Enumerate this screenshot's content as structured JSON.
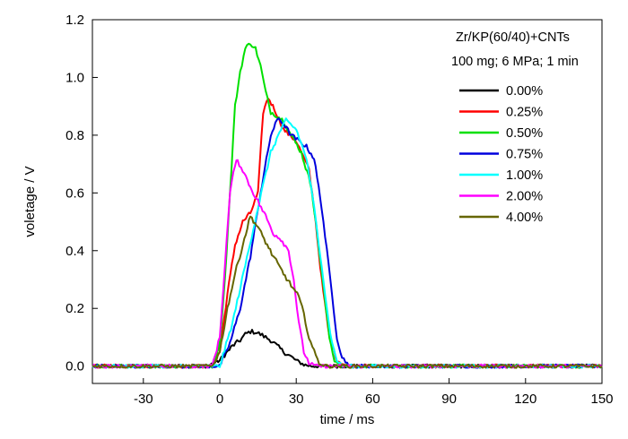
{
  "chart_data": {
    "type": "line",
    "xlabel": "time / ms",
    "ylabel": "voletage / V",
    "xlim": [
      -50,
      150
    ],
    "ylim": [
      -0.06,
      1.2
    ],
    "xticks": [
      -30,
      0,
      30,
      60,
      90,
      120,
      150
    ],
    "yticks": [
      0.0,
      0.2,
      0.4,
      0.6,
      0.8,
      1.0,
      1.2
    ],
    "ytick_labels": [
      "0.0",
      "0.2",
      "0.4",
      "0.6",
      "0.8",
      "1.0",
      "1.2"
    ],
    "grid": false,
    "legend_position": "top-right",
    "legend_header": [
      "Zr/KP(60/40)+CNTs",
      "100 mg; 6 MPa; 1 min"
    ],
    "series": [
      {
        "name": "0.00%",
        "color": "#000000",
        "x": [
          -50,
          -5,
          0,
          5,
          8,
          10,
          12,
          14,
          16,
          18,
          20,
          25,
          30,
          33,
          36,
          40,
          150
        ],
        "y": [
          0,
          0,
          0.02,
          0.07,
          0.09,
          0.11,
          0.12,
          0.118,
          0.11,
          0.1,
          0.09,
          0.05,
          0.02,
          0.005,
          0,
          0,
          0
        ]
      },
      {
        "name": "0.25%",
        "color": "#ff0000",
        "x": [
          -50,
          -3,
          0,
          3,
          6,
          9,
          12,
          15,
          17,
          19,
          22,
          25,
          30,
          35,
          37,
          40,
          43,
          46,
          50,
          150
        ],
        "y": [
          0,
          0,
          0.05,
          0.25,
          0.42,
          0.5,
          0.53,
          0.6,
          0.88,
          0.93,
          0.88,
          0.82,
          0.78,
          0.68,
          0.55,
          0.3,
          0.1,
          0.02,
          0,
          0
        ]
      },
      {
        "name": "0.50%",
        "color": "#00e000",
        "x": [
          -50,
          -3,
          0,
          2,
          4,
          6,
          8,
          10,
          12,
          14,
          16,
          18,
          20,
          22,
          25,
          28,
          32,
          36,
          39,
          41,
          43,
          45,
          48,
          150
        ],
        "y": [
          0,
          0,
          0.08,
          0.3,
          0.6,
          0.9,
          1.02,
          1.1,
          1.12,
          1.1,
          1.04,
          0.95,
          0.88,
          0.87,
          0.85,
          0.8,
          0.74,
          0.62,
          0.4,
          0.25,
          0.1,
          0.02,
          0,
          0
        ]
      },
      {
        "name": "0.75%",
        "color": "#0000dd",
        "x": [
          -50,
          0,
          4,
          8,
          12,
          16,
          20,
          23,
          25,
          28,
          31,
          34,
          37,
          40,
          42,
          44,
          46,
          48,
          50,
          52,
          150
        ],
        "y": [
          0,
          0,
          0.08,
          0.2,
          0.38,
          0.6,
          0.8,
          0.86,
          0.84,
          0.8,
          0.78,
          0.76,
          0.72,
          0.55,
          0.4,
          0.25,
          0.1,
          0.03,
          0.01,
          0,
          0
        ]
      },
      {
        "name": "1.00%",
        "color": "#00ffff",
        "x": [
          -50,
          0,
          5,
          10,
          15,
          20,
          24,
          26,
          30,
          34,
          37,
          40,
          42,
          44,
          46,
          48,
          150
        ],
        "y": [
          0,
          0,
          0.15,
          0.35,
          0.55,
          0.74,
          0.82,
          0.85,
          0.82,
          0.72,
          0.55,
          0.35,
          0.2,
          0.08,
          0.02,
          0,
          0
        ]
      },
      {
        "name": "2.00%",
        "color": "#ff00ff",
        "x": [
          -50,
          -3,
          0,
          2,
          4,
          6,
          7,
          9,
          12,
          15,
          18,
          21,
          24,
          27,
          29,
          31,
          33,
          35,
          38,
          150
        ],
        "y": [
          0,
          0,
          0.1,
          0.35,
          0.6,
          0.7,
          0.71,
          0.68,
          0.62,
          0.57,
          0.52,
          0.46,
          0.44,
          0.4,
          0.3,
          0.15,
          0.05,
          0.01,
          0,
          0
        ]
      },
      {
        "name": "4.00%",
        "color": "#666600",
        "x": [
          -50,
          -3,
          0,
          3,
          6,
          9,
          12,
          15,
          18,
          21,
          25,
          28,
          31,
          33,
          35,
          37,
          39,
          42,
          150
        ],
        "y": [
          0,
          0,
          0.05,
          0.2,
          0.32,
          0.42,
          0.52,
          0.48,
          0.43,
          0.38,
          0.32,
          0.28,
          0.24,
          0.18,
          0.1,
          0.05,
          0.01,
          0,
          0
        ]
      }
    ]
  }
}
